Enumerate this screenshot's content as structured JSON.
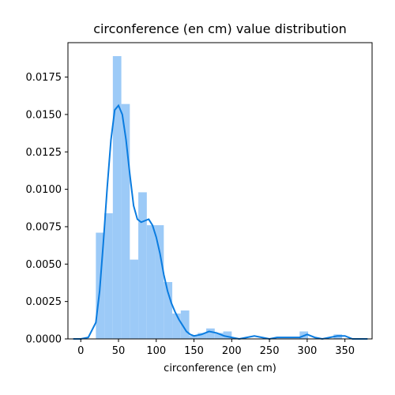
{
  "chart_data": {
    "type": "bar",
    "title": "circonference (en cm) value distribution",
    "xlabel": "circonference (en cm)",
    "ylabel": "",
    "xlim": [
      -17,
      386
    ],
    "ylim": [
      0,
      0.0198
    ],
    "xticks": [
      0,
      50,
      100,
      150,
      200,
      250,
      300,
      350
    ],
    "yticks": [
      "0.0000",
      "0.0025",
      "0.0050",
      "0.0075",
      "0.0100",
      "0.0125",
      "0.0150",
      "0.0175"
    ],
    "bin_width": 11.25,
    "bins": [
      {
        "start": 20.0,
        "density": 0.0071
      },
      {
        "start": 31.25,
        "density": 0.0084
      },
      {
        "start": 42.5,
        "density": 0.0189
      },
      {
        "start": 53.75,
        "density": 0.0157
      },
      {
        "start": 65.0,
        "density": 0.0053
      },
      {
        "start": 76.25,
        "density": 0.0098
      },
      {
        "start": 87.5,
        "density": 0.0076
      },
      {
        "start": 98.75,
        "density": 0.0076
      },
      {
        "start": 110.0,
        "density": 0.0038
      },
      {
        "start": 121.25,
        "density": 0.0017
      },
      {
        "start": 132.5,
        "density": 0.0019
      },
      {
        "start": 143.75,
        "density": 0.0002
      },
      {
        "start": 155.0,
        "density": 0.0004
      },
      {
        "start": 166.25,
        "density": 0.0007
      },
      {
        "start": 177.5,
        "density": 0.0004
      },
      {
        "start": 188.75,
        "density": 0.0005
      },
      {
        "start": 200.0,
        "density": 0.0
      },
      {
        "start": 211.25,
        "density": 0.0
      },
      {
        "start": 222.5,
        "density": 0.0
      },
      {
        "start": 233.75,
        "density": 0.0
      },
      {
        "start": 245.0,
        "density": 0.0
      },
      {
        "start": 256.25,
        "density": 0.0
      },
      {
        "start": 267.5,
        "density": 0.0
      },
      {
        "start": 278.75,
        "density": 0.0
      },
      {
        "start": 290.0,
        "density": 0.0005
      },
      {
        "start": 301.25,
        "density": 0.0
      },
      {
        "start": 312.5,
        "density": 0.0
      },
      {
        "start": 323.75,
        "density": 0.0
      },
      {
        "start": 335.0,
        "density": 0.0003
      }
    ],
    "kde": [
      [
        -10,
        0.0
      ],
      [
        0,
        0.0
      ],
      [
        10,
        0.0001
      ],
      [
        20,
        0.0011
      ],
      [
        25,
        0.0032
      ],
      [
        30,
        0.0065
      ],
      [
        35,
        0.0101
      ],
      [
        40,
        0.0133
      ],
      [
        45,
        0.0153
      ],
      [
        50,
        0.0156
      ],
      [
        55,
        0.015
      ],
      [
        60,
        0.0133
      ],
      [
        65,
        0.011
      ],
      [
        70,
        0.0089
      ],
      [
        75,
        0.008
      ],
      [
        80,
        0.0078
      ],
      [
        85,
        0.0079
      ],
      [
        90,
        0.008
      ],
      [
        95,
        0.0076
      ],
      [
        100,
        0.0068
      ],
      [
        105,
        0.0057
      ],
      [
        110,
        0.0043
      ],
      [
        115,
        0.0032
      ],
      [
        120,
        0.0024
      ],
      [
        125,
        0.0018
      ],
      [
        130,
        0.0013
      ],
      [
        135,
        0.0009
      ],
      [
        140,
        0.0005
      ],
      [
        145,
        0.0003
      ],
      [
        150,
        0.0002
      ],
      [
        160,
        0.0003
      ],
      [
        170,
        0.0005
      ],
      [
        180,
        0.0004
      ],
      [
        190,
        0.0002
      ],
      [
        200,
        0.0001
      ],
      [
        210,
        0.0
      ],
      [
        220,
        0.0001
      ],
      [
        230,
        0.0002
      ],
      [
        240,
        0.0001
      ],
      [
        250,
        0.0
      ],
      [
        260,
        0.0001
      ],
      [
        270,
        0.0001
      ],
      [
        280,
        0.0001
      ],
      [
        290,
        0.0001
      ],
      [
        300,
        0.0003
      ],
      [
        310,
        0.0001
      ],
      [
        320,
        0.0
      ],
      [
        330,
        0.0001
      ],
      [
        340,
        0.0002
      ],
      [
        350,
        0.0002
      ],
      [
        360,
        0.0
      ],
      [
        370,
        0.0
      ],
      [
        380,
        0.0
      ]
    ],
    "grid": false,
    "legend": "none",
    "colors": {
      "bar": "#9ccaf7",
      "kde": "#0a7ce0",
      "axes": "#000000"
    }
  }
}
